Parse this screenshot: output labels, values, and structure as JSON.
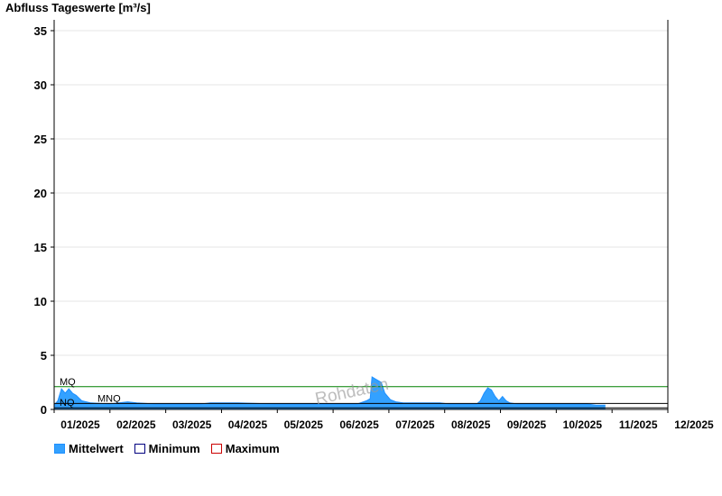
{
  "chart_data": {
    "type": "area",
    "title": "Abfluss Tageswerte [m³/s]",
    "watermark": "Rohdaten",
    "ylim": [
      0,
      36
    ],
    "yticks": [
      0,
      5,
      10,
      15,
      20,
      25,
      30,
      35
    ],
    "grid": true,
    "legend_position": "bottom-left",
    "x_tick_labels": [
      "01/2025",
      "02/2025",
      "03/2025",
      "04/2025",
      "05/2025",
      "06/2025",
      "07/2025",
      "08/2025",
      "09/2025",
      "10/2025",
      "11/2025",
      "12/2025"
    ],
    "reference_lines": [
      {
        "label": "MQ",
        "value": 2.1,
        "color": "#008000"
      },
      {
        "label": "MNQ",
        "value": 0.55,
        "color": "#000000"
      },
      {
        "label": "NQ",
        "value": 0.15,
        "color": "#000000"
      }
    ],
    "series": [
      {
        "name": "Mittelwert",
        "color": "#1E90FF",
        "fill": "#33A1FF",
        "points": [
          [
            0,
            0.4
          ],
          [
            2,
            0.8
          ],
          [
            4,
            1.9
          ],
          [
            6,
            1.5
          ],
          [
            8,
            1.9
          ],
          [
            10,
            1.5
          ],
          [
            12,
            1.3
          ],
          [
            15,
            0.8
          ],
          [
            20,
            0.6
          ],
          [
            30,
            0.5
          ],
          [
            40,
            0.7
          ],
          [
            45,
            0.6
          ],
          [
            55,
            0.5
          ],
          [
            70,
            0.5
          ],
          [
            80,
            0.5
          ],
          [
            85,
            0.6
          ],
          [
            100,
            0.6
          ],
          [
            120,
            0.5
          ],
          [
            150,
            0.5
          ],
          [
            160,
            0.5
          ],
          [
            165,
            0.5
          ],
          [
            170,
            0.8
          ],
          [
            172,
            1.0
          ],
          [
            173,
            3.0
          ],
          [
            175,
            2.8
          ],
          [
            178,
            2.5
          ],
          [
            180,
            1.5
          ],
          [
            183,
            0.9
          ],
          [
            186,
            0.7
          ],
          [
            190,
            0.6
          ],
          [
            194,
            0.6
          ],
          [
            196,
            0.6
          ],
          [
            198,
            0.6
          ],
          [
            200,
            0.6
          ],
          [
            202,
            0.6
          ],
          [
            205,
            0.6
          ],
          [
            210,
            0.6
          ],
          [
            215,
            0.5
          ],
          [
            220,
            0.5
          ],
          [
            224,
            0.5
          ],
          [
            226,
            0.5
          ],
          [
            228,
            0.5
          ],
          [
            230,
            0.5
          ],
          [
            232,
            0.8
          ],
          [
            234,
            1.5
          ],
          [
            236,
            2.0
          ],
          [
            238,
            1.8
          ],
          [
            240,
            1.2
          ],
          [
            242,
            0.8
          ],
          [
            244,
            1.2
          ],
          [
            246,
            0.8
          ],
          [
            248,
            0.6
          ],
          [
            252,
            0.5
          ],
          [
            256,
            0.5
          ],
          [
            260,
            0.5
          ],
          [
            264,
            0.5
          ],
          [
            270,
            0.5
          ],
          [
            276,
            0.5
          ],
          [
            280,
            0.5
          ],
          [
            285,
            0.5
          ],
          [
            290,
            0.5
          ],
          [
            295,
            0.4
          ],
          [
            300,
            0.4
          ]
        ]
      },
      {
        "name": "Minimum",
        "color": "#000080"
      },
      {
        "name": "Maximum",
        "color": "#CC0000"
      }
    ]
  }
}
